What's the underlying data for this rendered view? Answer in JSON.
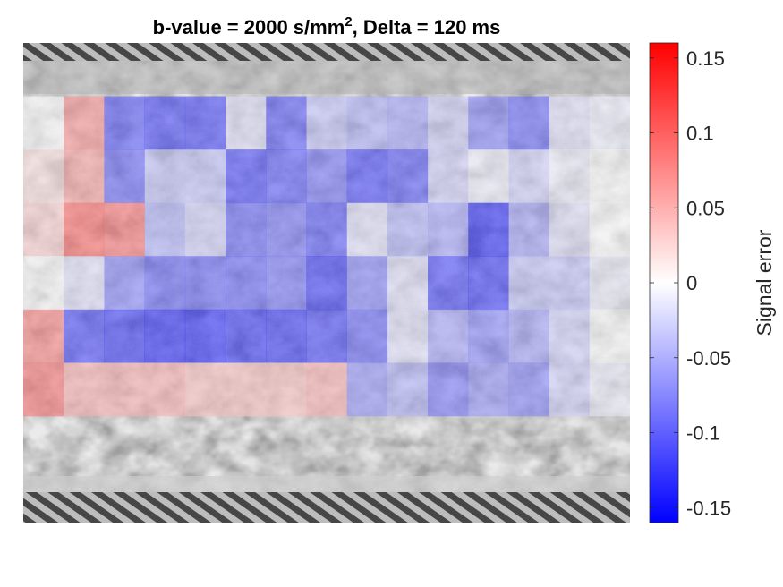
{
  "chart_data": {
    "type": "heatmap",
    "title_main": "b-value = 2000 s/mm",
    "title_sup": "2",
    "title_rest": ", Delta = 120 ms",
    "colorbar": {
      "label": "Signal error",
      "min": -0.16,
      "max": 0.16,
      "ticks": [
        0.15,
        0.1,
        0.05,
        0,
        -0.05,
        -0.1,
        -0.15
      ],
      "tick_labels": [
        "0.15",
        "0.1",
        "0.05",
        "0",
        "-0.05",
        "-0.1",
        "-0.15"
      ],
      "color_low": "#0000ff",
      "color_mid": "#ffffff",
      "color_high": "#ff0000"
    },
    "grid": {
      "rows": 9,
      "cols": 15,
      "values": [
        [
          null,
          null,
          null,
          null,
          null,
          null,
          null,
          null,
          null,
          null,
          null,
          null,
          null,
          null,
          null
        ],
        [
          0.0,
          0.07,
          -0.11,
          -0.12,
          -0.12,
          -0.02,
          -0.11,
          -0.04,
          -0.05,
          -0.06,
          -0.03,
          -0.08,
          -0.1,
          -0.02,
          -0.01
        ],
        [
          0.02,
          0.06,
          -0.1,
          -0.04,
          -0.04,
          -0.12,
          -0.11,
          -0.09,
          -0.12,
          -0.11,
          -0.03,
          -0.01,
          -0.03,
          -0.01,
          0.0
        ],
        [
          0.03,
          0.1,
          0.09,
          -0.05,
          -0.03,
          -0.1,
          -0.09,
          -0.11,
          -0.02,
          -0.05,
          -0.06,
          -0.14,
          -0.06,
          -0.02,
          0.0
        ],
        [
          0.0,
          -0.02,
          -0.08,
          -0.1,
          -0.1,
          -0.1,
          -0.09,
          -0.13,
          -0.08,
          -0.02,
          -0.12,
          -0.13,
          -0.04,
          -0.04,
          -0.01
        ],
        [
          0.08,
          -0.12,
          -0.13,
          -0.14,
          -0.14,
          -0.13,
          -0.13,
          -0.12,
          -0.1,
          -0.02,
          -0.06,
          -0.08,
          -0.06,
          -0.03,
          0.0
        ],
        [
          0.09,
          0.05,
          0.05,
          0.05,
          0.04,
          0.04,
          0.04,
          0.05,
          -0.07,
          -0.05,
          -0.09,
          -0.07,
          -0.08,
          -0.03,
          -0.01
        ],
        [
          null,
          null,
          null,
          null,
          null,
          null,
          null,
          null,
          null,
          null,
          null,
          null,
          null,
          null,
          null
        ],
        [
          null,
          null,
          null,
          null,
          null,
          null,
          null,
          null,
          null,
          null,
          null,
          null,
          null,
          null,
          null
        ]
      ]
    }
  }
}
